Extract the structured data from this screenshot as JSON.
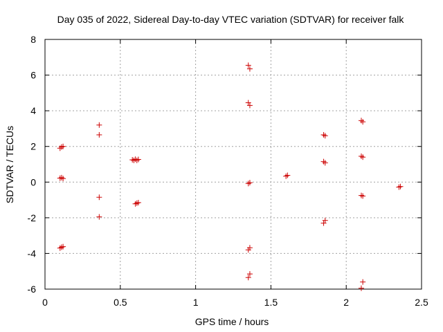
{
  "chart_data": {
    "type": "scatter",
    "title": "Day 035 of 2022, Sidereal Day-to-day VTEC variation (SDTVAR) for receiver falk",
    "xlabel": "GPS time / hours",
    "ylabel": "SDTVAR / TECUs",
    "xlim": [
      0,
      2.5
    ],
    "ylim": [
      -6,
      8
    ],
    "xticks": [
      "0",
      "0.5",
      "1",
      "1.5",
      "2",
      "2.5"
    ],
    "yticks": [
      "-6",
      "-4",
      "-2",
      "0",
      "2",
      "4",
      "6",
      "8"
    ],
    "grid": true,
    "marker": "+",
    "color": "#cc0000",
    "points": [
      [
        0.1,
        1.9
      ],
      [
        0.11,
        1.97
      ],
      [
        0.12,
        2.0
      ],
      [
        0.1,
        0.22
      ],
      [
        0.11,
        0.25
      ],
      [
        0.12,
        0.2
      ],
      [
        0.1,
        -3.7
      ],
      [
        0.11,
        -3.65
      ],
      [
        0.12,
        -3.62
      ],
      [
        0.36,
        3.2
      ],
      [
        0.36,
        2.65
      ],
      [
        0.36,
        -0.85
      ],
      [
        0.36,
        -1.95
      ],
      [
        0.58,
        1.25
      ],
      [
        0.59,
        1.22
      ],
      [
        0.6,
        1.28
      ],
      [
        0.61,
        1.22
      ],
      [
        0.62,
        1.27
      ],
      [
        0.6,
        -1.22
      ],
      [
        0.61,
        -1.18
      ],
      [
        0.62,
        -1.15
      ],
      [
        1.35,
        6.55
      ],
      [
        1.36,
        6.35
      ],
      [
        1.35,
        4.45
      ],
      [
        1.36,
        4.3
      ],
      [
        1.35,
        -0.08
      ],
      [
        1.36,
        -0.03
      ],
      [
        1.35,
        -3.8
      ],
      [
        1.36,
        -3.68
      ],
      [
        1.35,
        -5.35
      ],
      [
        1.36,
        -5.15
      ],
      [
        1.6,
        0.33
      ],
      [
        1.61,
        0.38
      ],
      [
        1.85,
        2.65
      ],
      [
        1.86,
        2.6
      ],
      [
        1.85,
        1.15
      ],
      [
        1.86,
        1.08
      ],
      [
        1.85,
        -2.3
      ],
      [
        1.86,
        -2.15
      ],
      [
        2.1,
        3.45
      ],
      [
        2.11,
        3.38
      ],
      [
        2.1,
        1.45
      ],
      [
        2.11,
        1.4
      ],
      [
        2.1,
        -0.75
      ],
      [
        2.11,
        -0.78
      ],
      [
        2.1,
        -5.95
      ],
      [
        2.11,
        -5.6
      ],
      [
        2.35,
        -0.28
      ],
      [
        2.36,
        -0.25
      ]
    ]
  }
}
